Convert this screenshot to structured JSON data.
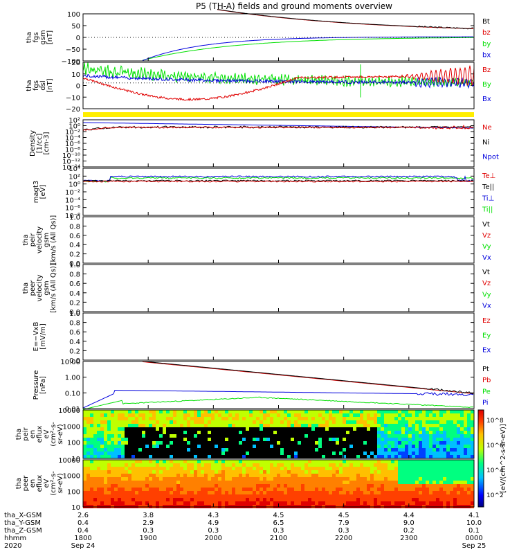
{
  "title": "P5 (TH-A) fields and ground moments overview",
  "colors": {
    "black": "#000000",
    "red": "#e00000",
    "green": "#00e000",
    "blue": "#0000dd",
    "yellow": "#ffee00"
  },
  "xticks": {
    "hhmm": [
      "1800",
      "1900",
      "2000",
      "2100",
      "2200",
      "2300",
      "0000"
    ]
  },
  "footer": {
    "row_labels": [
      "tha_X-GSM",
      "tha_Y-GSM",
      "tha_Z-GSM",
      "hhmm",
      "2020"
    ],
    "x_gsm": [
      "2.6",
      "3.8",
      "4.3",
      "4.5",
      "4.5",
      "4.4",
      "4.1"
    ],
    "y_gsm": [
      "0.4",
      "2.9",
      "4.9",
      "6.5",
      "7.9",
      "9.0",
      "10.0"
    ],
    "z_gsm": [
      "0.4",
      "0.3",
      "0.3",
      "0.3",
      "0.3",
      "0.2",
      "0.1"
    ],
    "date_start": "Sep 24",
    "date_end": "Sep 25"
  },
  "colorbar_label": "[eV/(cm^2-s-sr-eV)]",
  "colorbar_ticks": [
    "10^8",
    "10^6",
    "10^4",
    "10^2"
  ],
  "chart_data": [
    {
      "type": "line",
      "id": "fgs",
      "ylabel": [
        "tha",
        "fgs",
        "gsm",
        "[nT]"
      ],
      "ylim": [
        -100,
        100
      ],
      "yticks": [
        "100",
        "50",
        "0",
        "−50",
        "−100"
      ],
      "series": [
        {
          "name": "Bt",
          "color": "black"
        },
        {
          "name": "bz",
          "color": "red"
        },
        {
          "name": "by",
          "color": "green"
        },
        {
          "name": "bx",
          "color": "blue"
        }
      ]
    },
    {
      "type": "line",
      "id": "fgs_dsl",
      "ylabel": [
        "tha",
        "fgs",
        "dsl",
        "[nT]"
      ],
      "ylim": [
        -25,
        20
      ],
      "yticks": [
        "20",
        "10",
        "0",
        "−10",
        "−20"
      ],
      "series": [
        {
          "name": "Bz",
          "color": "red"
        },
        {
          "name": "By",
          "color": "green"
        },
        {
          "name": "Bx",
          "color": "blue"
        }
      ]
    },
    {
      "type": "line",
      "id": "density",
      "ylabel": [
        "Density",
        "[1/cc]",
        "[cm-3]"
      ],
      "log": true,
      "yticks": [
        "10²",
        "10⁰",
        "10⁻²",
        "10⁻⁴",
        "10⁻⁶",
        "10⁻⁸",
        "10⁻¹⁰",
        "10⁻¹²",
        "10⁻¹⁴"
      ],
      "series": [
        {
          "name": "Ne",
          "color": "red"
        },
        {
          "name": "Ni",
          "color": "black"
        },
        {
          "name": "Npot",
          "color": "blue"
        }
      ]
    },
    {
      "type": "line",
      "id": "temp",
      "ylabel": [
        "magt3",
        "[eV]"
      ],
      "log": true,
      "yticks": [
        "10⁴",
        "10²",
        "10⁰",
        "10⁻²",
        "10⁻⁴",
        "10⁻⁶",
        "10⁻⁸"
      ],
      "series": [
        {
          "name": "Te⊥",
          "color": "red"
        },
        {
          "name": "Te||",
          "color": "black"
        },
        {
          "name": "Ti⊥",
          "color": "blue"
        },
        {
          "name": "Ti||",
          "color": "green"
        }
      ]
    },
    {
      "type": "line",
      "id": "peir_vel",
      "ylabel": [
        "tha",
        "peir",
        "velocity",
        "gsm",
        "[km/s (All Qs)]"
      ],
      "ylim": [
        0,
        1
      ],
      "yticks": [
        "1.0",
        "0.8",
        "0.6",
        "0.4",
        "0.2",
        "0.0"
      ],
      "series": [
        {
          "name": "Vt",
          "color": "black"
        },
        {
          "name": "Vz",
          "color": "red"
        },
        {
          "name": "Vy",
          "color": "green"
        },
        {
          "name": "Vx",
          "color": "blue"
        }
      ]
    },
    {
      "type": "line",
      "id": "peer_vel",
      "ylabel": [
        "tha",
        "peer",
        "velocity",
        "gsm",
        "[km/s (All Qs)]"
      ],
      "ylim": [
        0,
        1
      ],
      "yticks": [
        "1.0",
        "0.8",
        "0.6",
        "0.4",
        "0.2",
        "0.0"
      ],
      "series": [
        {
          "name": "Vt",
          "color": "black"
        },
        {
          "name": "Vz",
          "color": "red"
        },
        {
          "name": "Vy",
          "color": "green"
        },
        {
          "name": "Vx",
          "color": "blue"
        }
      ]
    },
    {
      "type": "line",
      "id": "efield",
      "ylabel": [
        "E=−VxB",
        "[mV/m]"
      ],
      "ylim": [
        0,
        1
      ],
      "yticks": [
        "1.0",
        "0.8",
        "0.6",
        "0.4",
        "0.2",
        "0.0"
      ],
      "series": [
        {
          "name": "Ez",
          "color": "red"
        },
        {
          "name": "Ey",
          "color": "green"
        },
        {
          "name": "Ex",
          "color": "blue"
        }
      ]
    },
    {
      "type": "line",
      "id": "pressure",
      "ylabel": [
        "Pressure",
        "[nPa]"
      ],
      "log": true,
      "yticks": [
        "10.00",
        "1.00",
        "0.10",
        "0.01"
      ],
      "series": [
        {
          "name": "Pt",
          "color": "black"
        },
        {
          "name": "Pb",
          "color": "red"
        },
        {
          "name": "Pe",
          "color": "green"
        },
        {
          "name": "Pi",
          "color": "blue"
        }
      ]
    },
    {
      "type": "heatmap",
      "id": "peir_en",
      "ylabel": [
        "tha",
        "peir",
        "en",
        "eflux",
        "eV",
        "(cm²-s-",
        "sr-eV)"
      ],
      "yticks": [
        "10000",
        "1000",
        "100",
        "10"
      ]
    },
    {
      "type": "heatmap",
      "id": "peer_en",
      "ylabel": [
        "tha",
        "peer",
        "en",
        "eflux",
        "eV",
        "(cm²-s-",
        "sr-eV)"
      ],
      "yticks": [
        "10000",
        "1000",
        "100",
        "10"
      ]
    }
  ]
}
